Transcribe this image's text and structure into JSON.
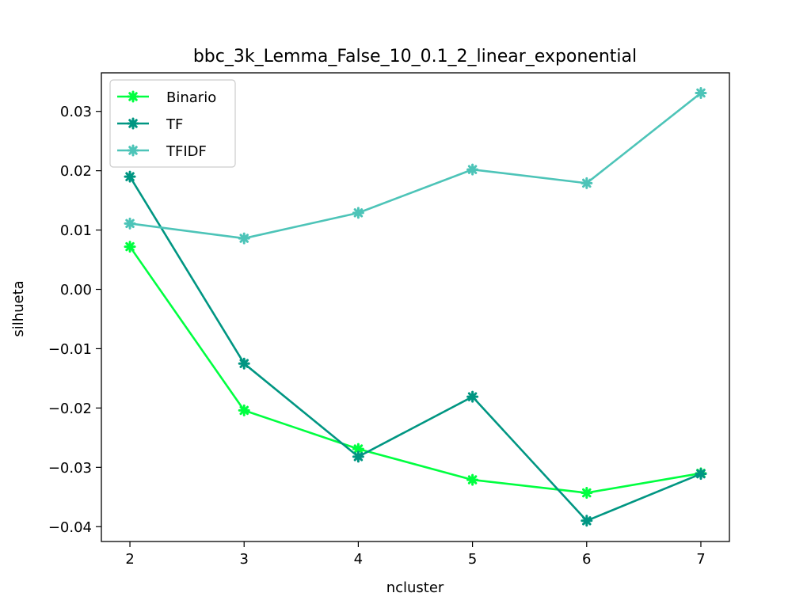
{
  "chart_data": {
    "type": "line",
    "title": "bbc_3k_Lemma_False_10_0.1_2_linear_exponential",
    "xlabel": "ncluster",
    "ylabel": "silhueta",
    "x": [
      2,
      3,
      4,
      5,
      6,
      7
    ],
    "xticks": [
      2,
      3,
      4,
      5,
      6,
      7
    ],
    "xtick_labels": [
      "2",
      "3",
      "4",
      "5",
      "6",
      "7"
    ],
    "xlim": [
      1.75,
      7.25
    ],
    "yticks": [
      -0.04,
      -0.03,
      -0.02,
      -0.01,
      0.0,
      0.01,
      0.02,
      0.03
    ],
    "ytick_labels": [
      "−0.04",
      "−0.03",
      "−0.02",
      "−0.01",
      "0.00",
      "0.01",
      "0.02",
      "0.03"
    ],
    "ylim": [
      -0.0425,
      0.0365
    ],
    "grid": false,
    "legend_position": "upper-left",
    "series": [
      {
        "name": "Binario",
        "color": "#00ff40",
        "values": [
          0.0072,
          -0.0204,
          -0.0269,
          -0.0321,
          -0.0343,
          -0.031
        ]
      },
      {
        "name": "TF",
        "color": "#009682",
        "values": [
          0.019,
          -0.0125,
          -0.0282,
          -0.0181,
          -0.039,
          -0.0311
        ]
      },
      {
        "name": "TFIDF",
        "color": "#4dc4b8",
        "values": [
          0.0111,
          0.0086,
          0.0129,
          0.0202,
          0.0179,
          0.0331
        ]
      }
    ]
  }
}
